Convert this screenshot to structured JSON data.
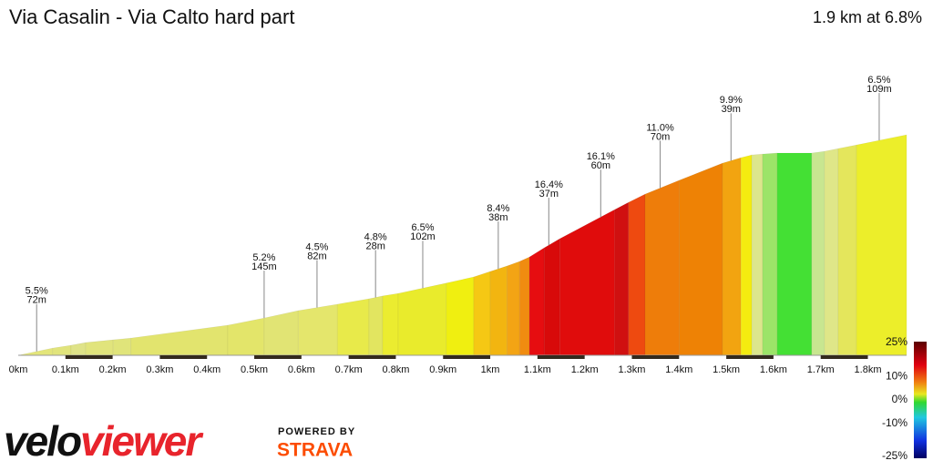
{
  "chart_data": {
    "type": "elevation-profile",
    "title": "Via Casalin - Via Calto hard part",
    "summary": "1.9 km at 6.8%",
    "xlim": [
      0,
      1.882
    ],
    "xticks": [
      {
        "value": 0,
        "label": "0km"
      },
      {
        "value": 0.1,
        "label": "0.1km"
      },
      {
        "value": 0.2,
        "label": "0.2km"
      },
      {
        "value": 0.3,
        "label": "0.3km"
      },
      {
        "value": 0.4,
        "label": "0.4km"
      },
      {
        "value": 0.5,
        "label": "0.5km"
      },
      {
        "value": 0.6,
        "label": "0.6km"
      },
      {
        "value": 0.7,
        "label": "0.7km"
      },
      {
        "value": 0.8,
        "label": "0.8km"
      },
      {
        "value": 0.9,
        "label": "0.9km"
      },
      {
        "value": 1,
        "label": "1km"
      },
      {
        "value": 1.1,
        "label": "1.1km"
      },
      {
        "value": 1.2,
        "label": "1.2km"
      },
      {
        "value": 1.3,
        "label": "1.3km"
      },
      {
        "value": 1.4,
        "label": "1.4km"
      },
      {
        "value": 1.5,
        "label": "1.5km"
      },
      {
        "value": 1.6,
        "label": "1.6km"
      },
      {
        "value": 1.7,
        "label": "1.7km"
      },
      {
        "value": 1.8,
        "label": "1.8km"
      }
    ],
    "x": [
      0,
      0.073,
      0.112,
      0.143,
      0.201,
      0.239,
      0.444,
      0.521,
      0.593,
      0.676,
      0.743,
      0.772,
      0.805,
      0.907,
      0.965,
      1.0,
      1.036,
      1.062,
      1.083,
      1.114,
      1.147,
      1.264,
      1.293,
      1.328,
      1.4,
      1.492,
      1.531,
      1.554,
      1.577,
      1.608,
      1.681,
      1.708,
      1.737,
      1.776,
      1.882
    ],
    "elevation": [
      0,
      4.2,
      5.8,
      7.4,
      9,
      10,
      17.5,
      21.7,
      26,
      29.7,
      32.9,
      34.5,
      36,
      42,
      45.6,
      48.8,
      52,
      54.6,
      57.2,
      62.5,
      67.8,
      84.8,
      89,
      93.8,
      101.8,
      111.8,
      115,
      116.6,
      117.1,
      117.7,
      117.7,
      118.7,
      120.3,
      122.4,
      128.3
    ],
    "segment_colors": [
      "#e3e57a",
      "#e1e47c",
      "#dfe388",
      "#e1e47c",
      "#e0e47a",
      "#e2e46e",
      "#e3e56a",
      "#e1e474",
      "#e4e66c",
      "#e8ea4a",
      "#e2e560",
      "#ebec30",
      "#e9eb2c",
      "#f0ef10",
      "#f5c814",
      "#f2b510",
      "#f3a414",
      "#f08c10",
      "#e60d10",
      "#d80a0a",
      "#e00c0c",
      "#d01010",
      "#ee4a10",
      "#ee7d0a",
      "#ee8205",
      "#f2a410",
      "#f4ec10",
      "#dce68c",
      "#9ce468",
      "#44e034",
      "#c8e690",
      "#dfe688",
      "#e4e65c",
      "#ecee2a"
    ],
    "annotations": [
      {
        "x": 0.039,
        "gradient": "5.5%",
        "length": "72m"
      },
      {
        "x": 0.521,
        "gradient": "5.2%",
        "length": "145m"
      },
      {
        "x": 0.633,
        "gradient": "4.5%",
        "length": "82m"
      },
      {
        "x": 0.757,
        "gradient": "4.8%",
        "length": "28m"
      },
      {
        "x": 0.857,
        "gradient": "6.5%",
        "length": "102m"
      },
      {
        "x": 1.017,
        "gradient": "8.4%",
        "length": "38m"
      },
      {
        "x": 1.124,
        "gradient": "16.4%",
        "length": "37m"
      },
      {
        "x": 1.234,
        "gradient": "16.1%",
        "length": "60m"
      },
      {
        "x": 1.36,
        "gradient": "11.0%",
        "length": "70m"
      },
      {
        "x": 1.51,
        "gradient": "9.9%",
        "length": "39m"
      },
      {
        "x": 1.824,
        "gradient": "6.5%",
        "length": "109m"
      }
    ],
    "colorbar": {
      "lim": [
        -25,
        25
      ],
      "ticks": [
        {
          "value": 25,
          "label": "25%"
        },
        {
          "value": 10,
          "label": "10%"
        },
        {
          "value": 0,
          "label": "0%"
        },
        {
          "value": -10,
          "label": "-10%"
        },
        {
          "value": -25,
          "label": "-25%"
        }
      ]
    },
    "logo": {
      "velo": "velo",
      "viewer": "viewer",
      "powered_by": "POWERED BY",
      "strava": "STRAVA"
    }
  }
}
